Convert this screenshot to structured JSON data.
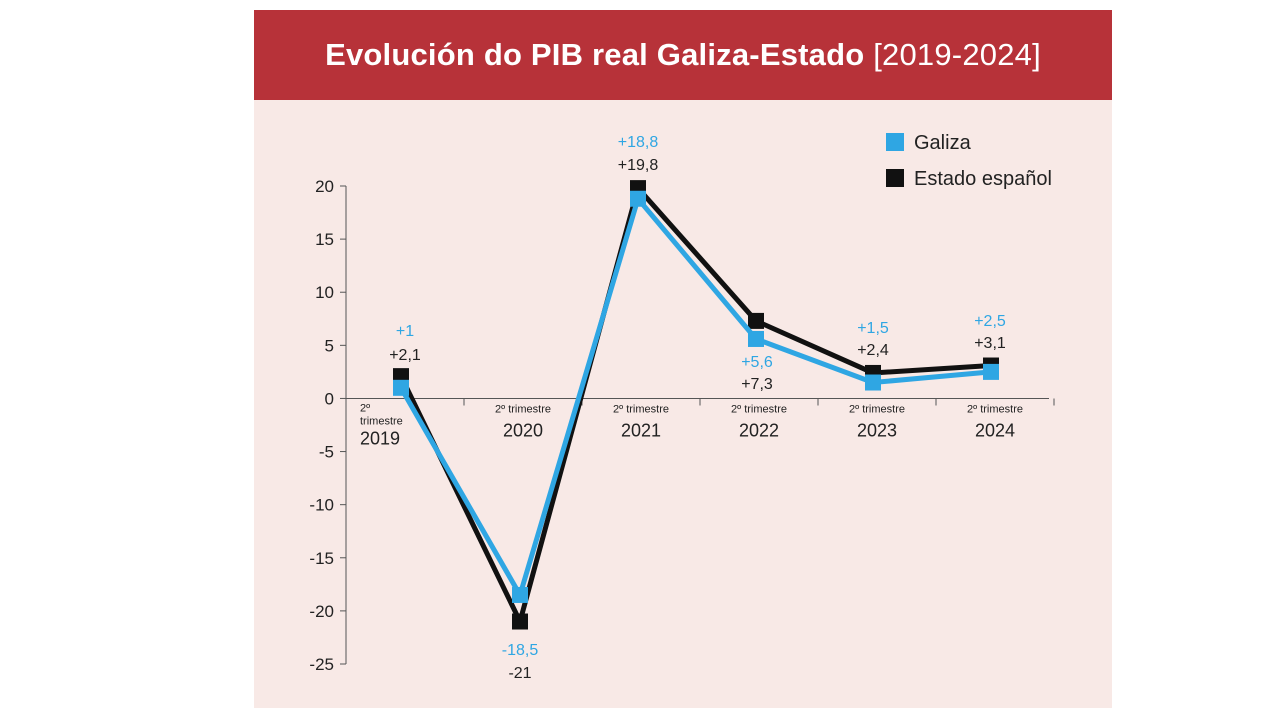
{
  "title": {
    "main": "Evolución do PIB real Galiza-Estado",
    "years": "[2019-2024]"
  },
  "colors": {
    "banner": "#b73239",
    "background": "#f8e9e6",
    "galiza": "#2fa6e3",
    "estado": "#111111"
  },
  "chart_data": {
    "type": "line",
    "title": "Evolución do PIB real Galiza-Estado [2019-2024]",
    "categories": [
      {
        "top": "2º",
        "mid": "trimestre",
        "year": "2019"
      },
      {
        "top": "2º trimestre",
        "mid": "",
        "year": "2020"
      },
      {
        "top": "2º trimestre",
        "mid": "",
        "year": "2021"
      },
      {
        "top": "2º trimestre",
        "mid": "",
        "year": "2022"
      },
      {
        "top": "2º trimestre",
        "mid": "",
        "year": "2023"
      },
      {
        "top": "2º trimestre",
        "mid": "",
        "year": "2024"
      }
    ],
    "ylim": [
      -25,
      20
    ],
    "yticks": [
      "20",
      "15",
      "10",
      "5",
      "0",
      "-5",
      "-10",
      "-15",
      "-20",
      "-25"
    ],
    "ytick_values": [
      20,
      15,
      10,
      5,
      0,
      -5,
      -10,
      -15,
      -20,
      -25
    ],
    "series": [
      {
        "name": "Estado español",
        "color": "#111111",
        "values": [
          2.1,
          -21,
          19.8,
          7.3,
          2.4,
          3.1
        ],
        "labels": [
          "+2,1",
          "-21",
          "+19,8",
          "+7,3",
          "+2,4",
          "+3,1"
        ]
      },
      {
        "name": "Galiza",
        "color": "#2fa6e3",
        "values": [
          1,
          -18.5,
          18.8,
          5.6,
          1.5,
          2.5
        ],
        "labels": [
          "+1",
          "-18,5",
          "+18,8",
          "+5,6",
          "+1,5",
          "+2,5"
        ]
      }
    ],
    "legend": {
      "position": "top-right",
      "items": [
        "Galiza",
        "Estado español"
      ]
    },
    "grid": false
  }
}
